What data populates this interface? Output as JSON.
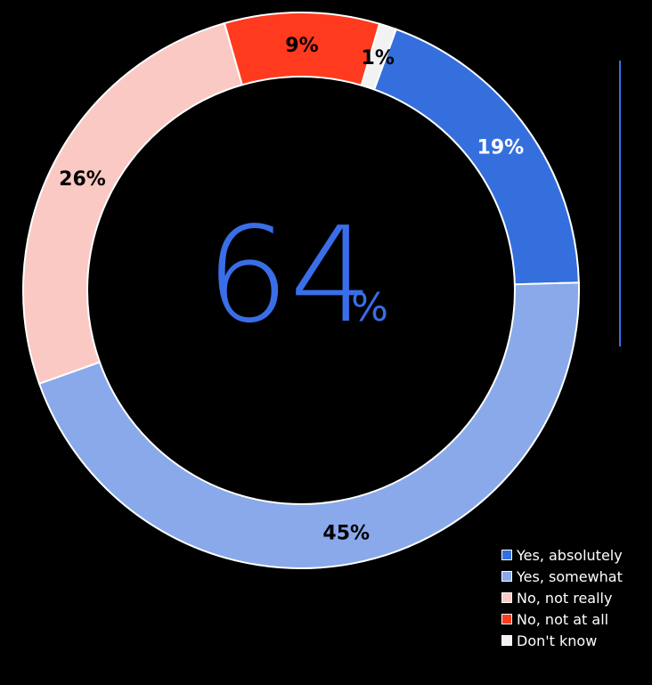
{
  "chart_data": {
    "type": "pie",
    "variant": "donut",
    "center_value": "64",
    "center_unit": "%",
    "series": [
      {
        "name": "Yes, absolutely",
        "value": 19,
        "label": "19%",
        "color": "#356fdd",
        "label_color": "#ffffff"
      },
      {
        "name": "Yes, somewhat",
        "value": 45,
        "label": "45%",
        "color": "#89a9ea",
        "label_color": "#000000"
      },
      {
        "name": "No, not really",
        "value": 26,
        "label": "26%",
        "color": "#fbc9c3",
        "label_color": "#000000"
      },
      {
        "name": "No, not at all",
        "value": 9,
        "label": "9%",
        "color": "#ff3a1f",
        "label_color": "#000000"
      },
      {
        "name": "Don't know",
        "value": 1,
        "label": "1%",
        "color": "#f2f2f2",
        "label_color": "#000000"
      }
    ],
    "legend_position": "bottom-right",
    "accent_color": "#3a6ee8",
    "background": "#000000"
  }
}
